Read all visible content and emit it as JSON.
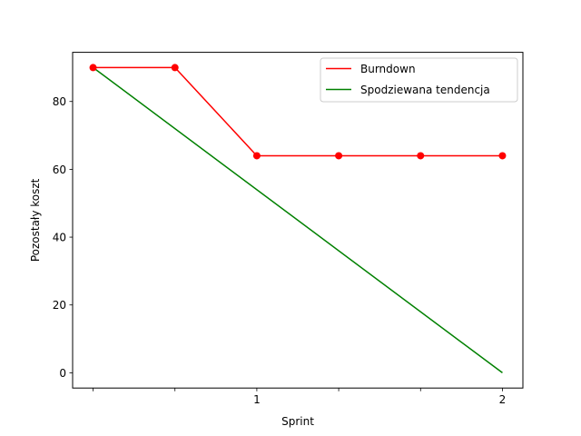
{
  "chart_data": {
    "type": "line",
    "title": "",
    "xlabel": "Sprint",
    "ylabel": "Pozostały koszt",
    "x": [
      0,
      0.5,
      1,
      1.5,
      2,
      2.5
    ],
    "x_ticks": [
      {
        "value": 0,
        "label": ""
      },
      {
        "value": 0.5,
        "label": ""
      },
      {
        "value": 1,
        "label": "1"
      },
      {
        "value": 1.5,
        "label": ""
      },
      {
        "value": 2,
        "label": ""
      },
      {
        "value": 2.5,
        "label": "2"
      }
    ],
    "xlim": [
      -0.125,
      2.625
    ],
    "ylim": [
      -4.5,
      94.5
    ],
    "y_ticks": [
      0,
      20,
      40,
      60,
      80
    ],
    "grid": false,
    "legend_position": "upper right",
    "series": [
      {
        "name": "Burndown",
        "color": "#ff0000",
        "marker": "circle",
        "x": [
          0,
          0.5,
          1,
          1.5,
          2,
          2.5
        ],
        "values": [
          90,
          90,
          64,
          64,
          64,
          64
        ]
      },
      {
        "name": "Spodziewana tendencja",
        "color": "#008000",
        "marker": "none",
        "x": [
          0,
          2.5
        ],
        "values": [
          90,
          0
        ]
      }
    ]
  }
}
